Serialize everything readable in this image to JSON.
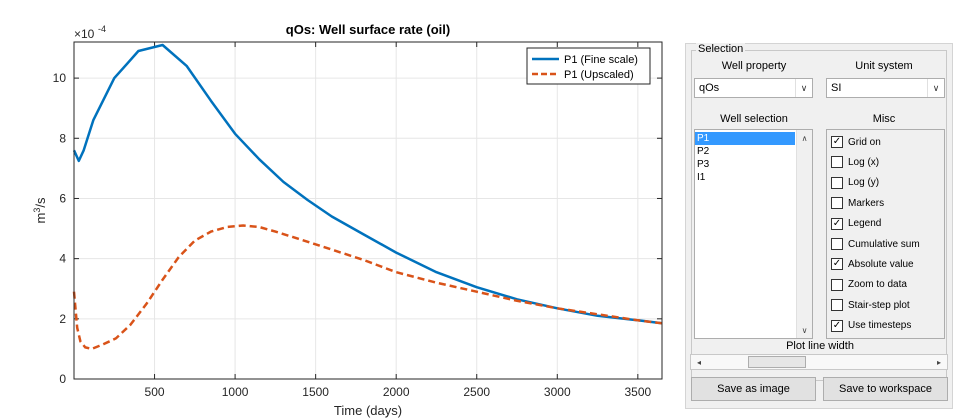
{
  "chart_data": {
    "type": "line",
    "title": "qOs: Well surface rate (oil)",
    "xlabel": "Time (days)",
    "ylabel_base": "m",
    "ylabel_exp": "3",
    "ylabel_unit": "/s",
    "exponent_base": "×10",
    "exponent_power": "-4",
    "xlim": [
      0,
      3650
    ],
    "ylim": [
      0,
      11.2
    ],
    "x_ticks": [
      0,
      500,
      1000,
      1500,
      2000,
      2500,
      3000,
      3500
    ],
    "y_ticks": [
      0,
      2,
      4,
      6,
      8,
      10
    ],
    "x_tick_labels": [
      "500",
      "1000",
      "1500",
      "2000",
      "2500",
      "3000",
      "3500"
    ],
    "y_tick_labels": [
      "0",
      "2",
      "4",
      "6",
      "8",
      "10"
    ],
    "grid": true,
    "legend_position": "top-right",
    "series": [
      {
        "name": "P1 (Fine scale)",
        "color": "#0072BD",
        "style": "solid",
        "x": [
          0,
          30,
          60,
          120,
          250,
          400,
          550,
          700,
          850,
          1000,
          1150,
          1300,
          1450,
          1600,
          1800,
          2000,
          2250,
          2500,
          2750,
          3000,
          3250,
          3500,
          3650
        ],
        "y": [
          7.6,
          7.25,
          7.6,
          8.6,
          10.0,
          10.9,
          11.1,
          10.4,
          9.25,
          8.15,
          7.3,
          6.55,
          5.95,
          5.4,
          4.8,
          4.2,
          3.55,
          3.05,
          2.65,
          2.35,
          2.1,
          1.95,
          1.85
        ]
      },
      {
        "name": "P1 (Upscaled)",
        "color": "#D95319",
        "style": "dashed",
        "x": [
          0,
          10,
          20,
          40,
          70,
          110,
          180,
          260,
          350,
          450,
          550,
          650,
          750,
          850,
          950,
          1050,
          1150,
          1250,
          1400,
          1600,
          1800,
          2000,
          2250,
          2500,
          2750,
          3000,
          3250,
          3500,
          3650
        ],
        "y": [
          2.9,
          2.3,
          1.7,
          1.25,
          1.05,
          1.0,
          1.15,
          1.35,
          1.8,
          2.5,
          3.3,
          4.05,
          4.6,
          4.9,
          5.05,
          5.1,
          5.05,
          4.9,
          4.65,
          4.3,
          3.95,
          3.55,
          3.2,
          2.9,
          2.6,
          2.35,
          2.15,
          1.95,
          1.85
        ]
      }
    ]
  },
  "panel": {
    "group_title": "Selection",
    "well_property_label": "Well property",
    "unit_system_label": "Unit system",
    "well_property_value": "qOs",
    "unit_system_value": "SI",
    "well_selection_label": "Well selection",
    "misc_label": "Misc",
    "wells": [
      "P1",
      "P2",
      "P3",
      "I1"
    ],
    "selected_well": "P1",
    "misc_options": [
      {
        "label": "Grid on",
        "checked": true
      },
      {
        "label": "Log (x)",
        "checked": false
      },
      {
        "label": "Log (y)",
        "checked": false
      },
      {
        "label": "Markers",
        "checked": false
      },
      {
        "label": "Legend",
        "checked": true
      },
      {
        "label": "Cumulative sum",
        "checked": false
      },
      {
        "label": "Absolute value",
        "checked": true
      },
      {
        "label": "Zoom to data",
        "checked": false
      },
      {
        "label": "Stair-step plot",
        "checked": false
      },
      {
        "label": "Use timesteps",
        "checked": true
      }
    ],
    "plot_line_width_label": "Plot line width",
    "plot_line_width_fraction": 0.25,
    "save_image_label": "Save as image",
    "save_workspace_label": "Save to workspace"
  },
  "icons": {
    "dropdown_arrow": "chevron-down-icon",
    "scroll_up": "triangle-up-icon",
    "scroll_down": "triangle-down-icon",
    "scroll_left": "triangle-left-icon",
    "scroll_right": "triangle-right-icon",
    "check": "check-icon"
  }
}
